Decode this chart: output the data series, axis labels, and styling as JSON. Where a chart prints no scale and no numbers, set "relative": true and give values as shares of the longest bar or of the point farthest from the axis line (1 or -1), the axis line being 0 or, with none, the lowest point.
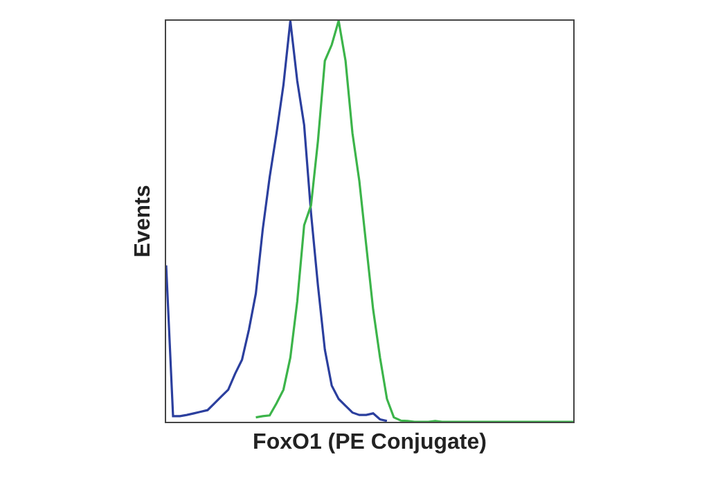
{
  "chart_data": {
    "type": "line",
    "relative": true,
    "xlabel": "FoxO1 (PE Conjugate)",
    "ylabel": "Events",
    "grid": false,
    "marker": "none",
    "line_style": "solid",
    "categories": [
      null,
      null,
      null,
      null,
      null,
      null,
      null,
      null,
      null,
      null,
      null,
      null,
      null,
      null,
      null,
      null,
      null,
      null,
      null,
      null,
      null,
      null,
      null,
      null,
      null,
      null,
      null,
      null,
      null,
      null,
      null,
      null,
      null,
      null,
      null,
      null,
      null,
      null,
      null,
      null,
      null,
      null,
      null,
      null,
      null,
      null,
      null,
      null,
      null,
      null,
      null,
      null,
      null,
      null,
      null,
      null,
      null,
      null,
      null,
      null
    ],
    "series": [
      {
        "color": "#2b3f9e",
        "values": [
          0.39,
          0.014,
          0.014,
          0.017,
          0.021,
          0.025,
          0.029,
          0.046,
          0.063,
          0.08,
          0.12,
          0.155,
          0.23,
          0.32,
          0.48,
          0.61,
          0.72,
          0.84,
          1,
          0.85,
          0.74,
          0.52,
          0.34,
          0.18,
          0.09,
          0.057,
          0.04,
          0.023,
          0.017,
          0.017,
          0.021,
          0.006,
          0.002,
          null,
          null,
          null,
          null,
          null,
          null,
          null,
          null,
          null,
          null,
          null,
          null,
          null,
          null,
          null,
          null,
          null,
          null,
          null,
          null,
          null,
          null,
          null,
          null,
          null,
          null,
          null
        ]
      },
      {
        "color": "#3cb44a",
        "values": [
          null,
          null,
          null,
          null,
          null,
          null,
          null,
          null,
          null,
          null,
          null,
          null,
          null,
          0.011,
          0.014,
          0.016,
          0.046,
          0.08,
          0.16,
          0.3,
          0.49,
          0.54,
          0.7,
          0.9,
          0.94,
          1,
          0.9,
          0.72,
          0.6,
          0.44,
          0.28,
          0.16,
          0.057,
          0.011,
          0.003,
          0.002,
          0,
          0,
          0,
          0.002,
          0,
          0,
          0,
          0,
          0,
          0,
          0,
          0,
          0,
          0,
          0,
          0,
          0,
          0,
          0,
          0,
          0,
          0,
          0,
          0
        ]
      }
    ]
  }
}
